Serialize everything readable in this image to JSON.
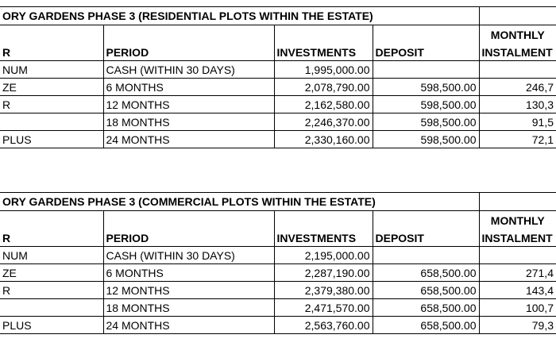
{
  "tables": [
    {
      "title": "ORY GARDENS PHASE 3 (RESIDENTIAL PLOTS WITHIN THE ESTATE)",
      "headers": {
        "col1": "R",
        "period": "PERIOD",
        "investments": "INVESTMENTS",
        "deposit": "DEPOSIT",
        "monthly_line1": "MONTHLY",
        "monthly_line2": "INSTALMENT"
      },
      "rows": [
        {
          "col1": "NUM",
          "period": "CASH (WITHIN 30 DAYS)",
          "investments": "1,995,000.00",
          "deposit": "",
          "monthly": ""
        },
        {
          "col1": "ZE",
          "period": "6 MONTHS",
          "investments": "2,078,790.00",
          "deposit": "598,500.00",
          "monthly": "246,7"
        },
        {
          "col1": "R",
          "period": "12 MONTHS",
          "investments": "2,162,580.00",
          "deposit": "598,500.00",
          "monthly": "130,3"
        },
        {
          "col1": "",
          "period": "18 MONTHS",
          "investments": "2,246,370.00",
          "deposit": "598,500.00",
          "monthly": "91,5"
        },
        {
          "col1": " PLUS",
          "period": "24 MONTHS",
          "investments": "2,330,160.00",
          "deposit": "598,500.00",
          "monthly": "72,1"
        }
      ]
    },
    {
      "title": "ORY GARDENS PHASE 3 (COMMERCIAL PLOTS WITHIN THE ESTATE)",
      "headers": {
        "col1": "R",
        "period": "PERIOD",
        "investments": "INVESTMENTS",
        "deposit": "DEPOSIT",
        "monthly_line1": "MONTHLY",
        "monthly_line2": "INSTALMENT"
      },
      "rows": [
        {
          "col1": "NUM",
          "period": "CASH (WITHIN 30 DAYS)",
          "investments": "2,195,000.00",
          "deposit": "",
          "monthly": ""
        },
        {
          "col1": "ZE",
          "period": "6 MONTHS",
          "investments": "2,287,190.00",
          "deposit": "658,500.00",
          "monthly": "271,4"
        },
        {
          "col1": "R",
          "period": "12 MONTHS",
          "investments": "2,379,380.00",
          "deposit": "658,500.00",
          "monthly": "143,4"
        },
        {
          "col1": "",
          "period": "18 MONTHS",
          "investments": "2,471,570.00",
          "deposit": "658,500.00",
          "monthly": "100,7"
        },
        {
          "col1": " PLUS",
          "period": "24 MONTHS",
          "investments": "2,563,760.00",
          "deposit": "658,500.00",
          "monthly": "79,3"
        }
      ]
    }
  ]
}
